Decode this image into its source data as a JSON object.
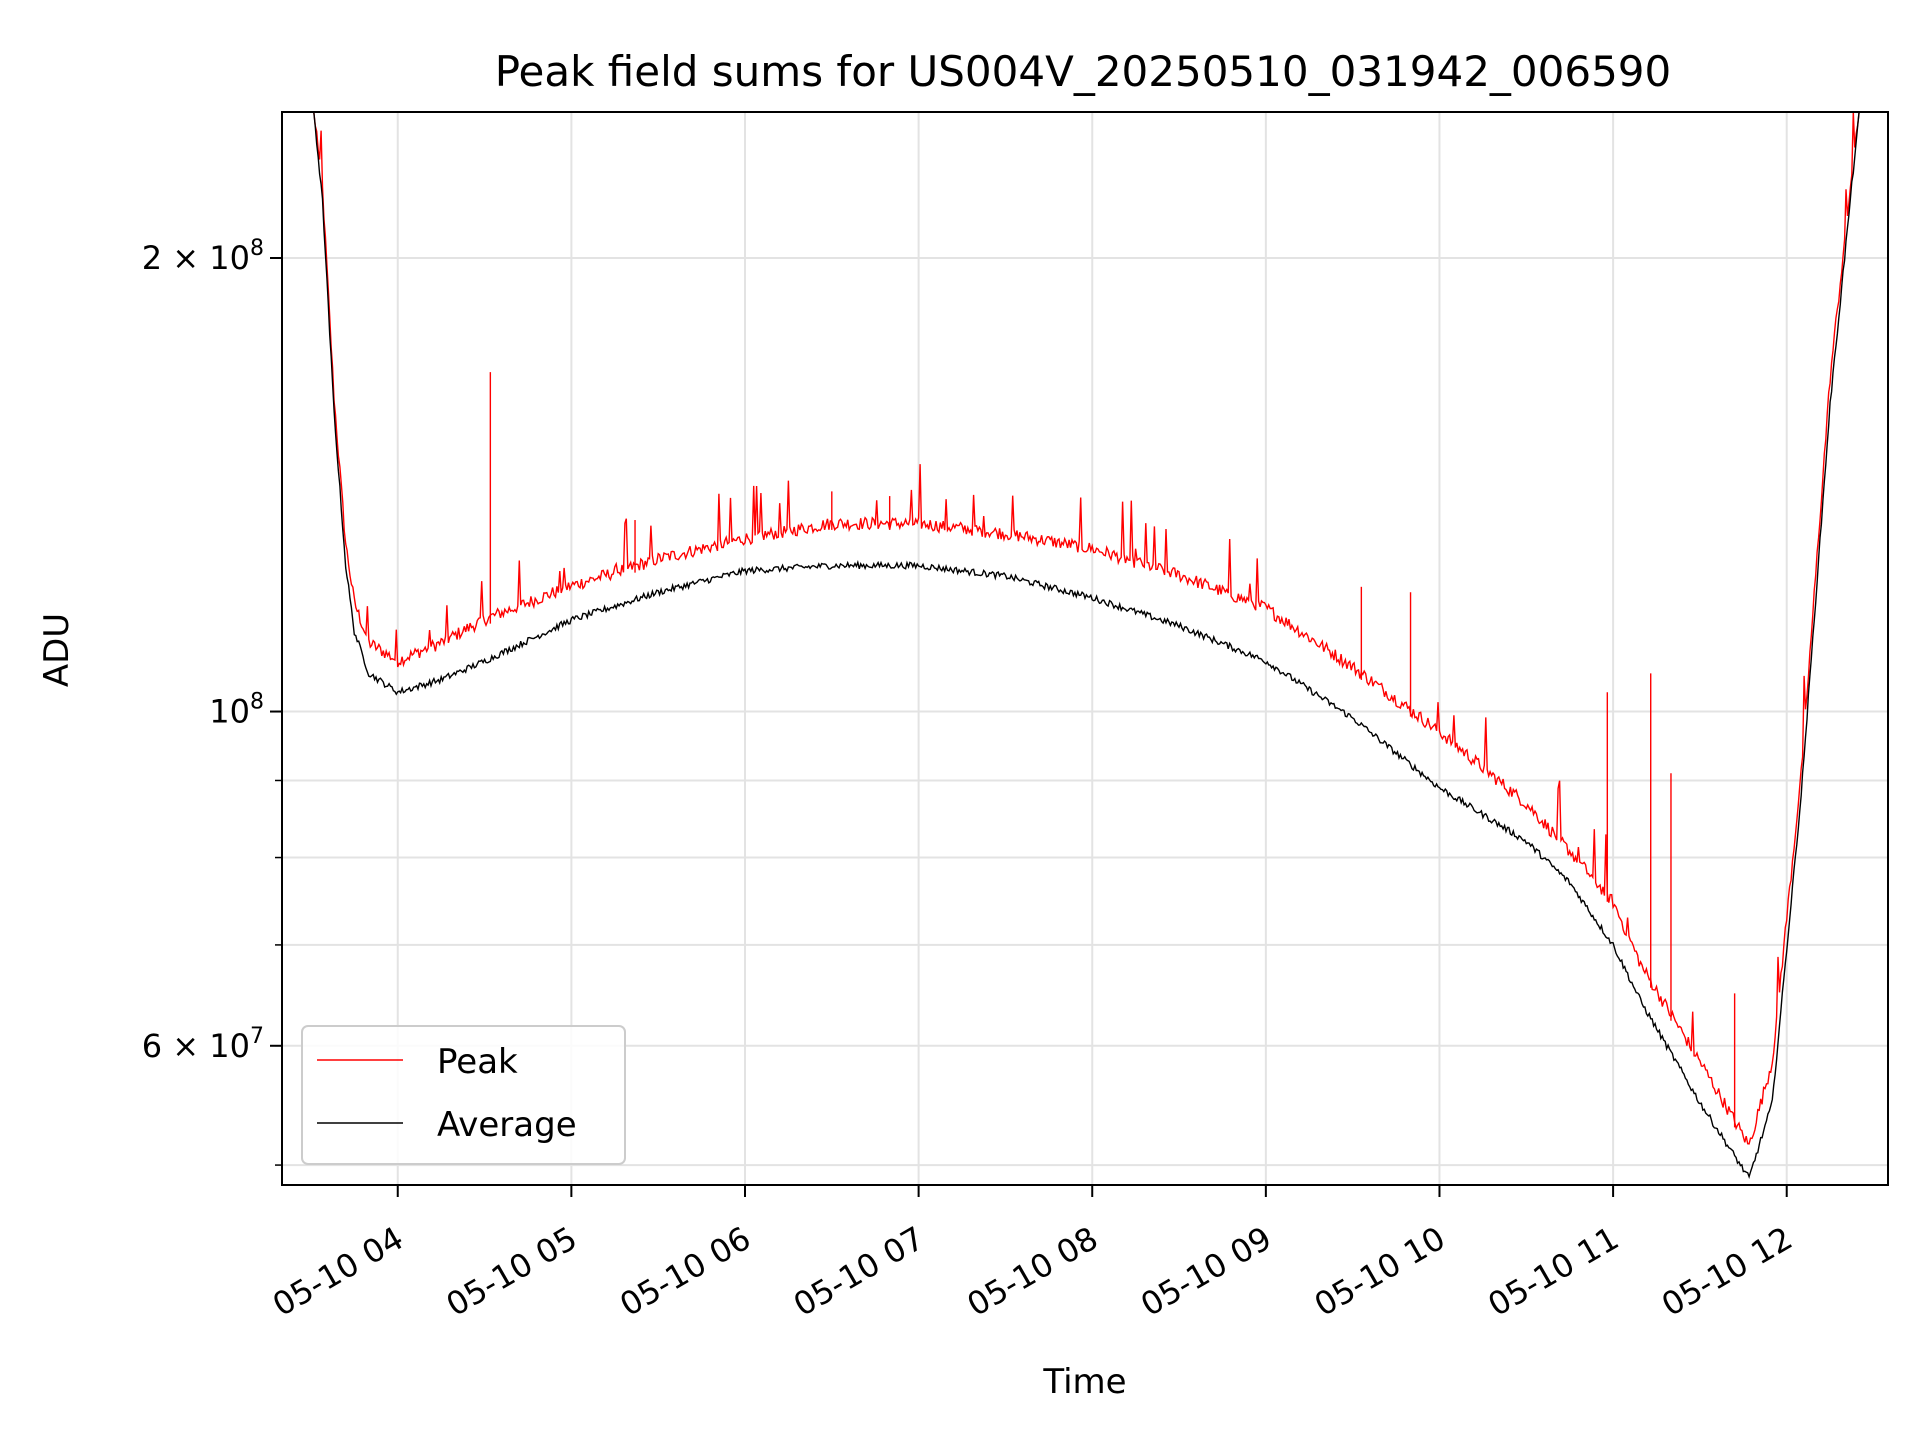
{
  "chart_data": {
    "type": "line",
    "title": "Peak field sums for US004V_20250510_031942_006590",
    "xlabel": "Time",
    "ylabel": "ADU",
    "xlim": [
      "05-10 03:20",
      "05-10 12:35"
    ],
    "ylim": [
      48500000,
      250000000
    ],
    "yscale": "log",
    "grid": true,
    "legend_position": "lower-left",
    "x_tick_labels": [
      "05-10 04",
      "05-10 05",
      "05-10 06",
      "05-10 07",
      "05-10 08",
      "05-10 09",
      "05-10 10",
      "05-10 11",
      "05-10 12"
    ],
    "y_tick_labels": [
      {
        "value": 200000000,
        "base": "2 × 10",
        "exp": "8"
      },
      {
        "value": 100000000,
        "base": "10",
        "exp": "8"
      },
      {
        "value": 60000000,
        "base": "6 × 10",
        "exp": "7"
      }
    ],
    "series": [
      {
        "name": "Peak",
        "color": "#ff0000",
        "x": [
          "05-10 03:20",
          "05-10 03:31",
          "05-10 03:34",
          "05-10 03:38",
          "05-10 03:42",
          "05-10 03:45",
          "05-10 03:50",
          "05-10 04:00",
          "05-10 04:15",
          "05-10 04:30",
          "05-10 05:00",
          "05-10 05:30",
          "05-10 06:00",
          "05-10 06:30",
          "05-10 07:00",
          "05-10 07:30",
          "05-10 08:00",
          "05-10 08:30",
          "05-10 09:00",
          "05-10 09:30",
          "05-10 10:00",
          "05-10 10:30",
          "05-10 10:45",
          "05-10 11:00",
          "05-10 11:10",
          "05-10 11:30",
          "05-10 11:47",
          "05-10 11:55",
          "05-10 12:05",
          "05-10 12:15",
          "05-10 12:25",
          "05-10 12:35"
        ],
        "y": [
          250000000,
          250000000,
          220000000,
          160000000,
          128000000,
          117000000,
          110000000,
          107000000,
          110000000,
          114000000,
          120000000,
          125000000,
          129000000,
          132000000,
          132000000,
          130000000,
          127000000,
          122000000,
          116000000,
          106000000,
          96000000,
          86000000,
          80000000,
          74000000,
          67000000,
          58000000,
          51000000,
          58000000,
          90000000,
          165000000,
          250000000,
          250000000
        ],
        "spikes": [
          {
            "x": "05-10 04:32",
            "y": 168000000
          },
          {
            "x": "05-10 05:22",
            "y": 134000000
          },
          {
            "x": "05-10 06:30",
            "y": 140000000
          },
          {
            "x": "05-10 06:50",
            "y": 139000000
          },
          {
            "x": "05-10 09:33",
            "y": 121000000
          },
          {
            "x": "05-10 09:50",
            "y": 120000000
          },
          {
            "x": "05-10 10:58",
            "y": 103000000
          },
          {
            "x": "05-10 11:13",
            "y": 106000000
          },
          {
            "x": "05-10 11:20",
            "y": 91000000
          },
          {
            "x": "05-10 11:42",
            "y": 65000000
          }
        ]
      },
      {
        "name": "Average",
        "color": "#000000",
        "x": [
          "05-10 03:20",
          "05-10 03:31",
          "05-10 03:34",
          "05-10 03:38",
          "05-10 03:42",
          "05-10 03:45",
          "05-10 03:50",
          "05-10 04:00",
          "05-10 04:15",
          "05-10 04:30",
          "05-10 05:00",
          "05-10 05:30",
          "05-10 06:00",
          "05-10 06:30",
          "05-10 07:00",
          "05-10 07:30",
          "05-10 08:00",
          "05-10 08:30",
          "05-10 09:00",
          "05-10 09:30",
          "05-10 10:00",
          "05-10 10:30",
          "05-10 10:45",
          "05-10 11:00",
          "05-10 11:10",
          "05-10 11:30",
          "05-10 11:47",
          "05-10 11:55",
          "05-10 12:05",
          "05-10 12:15",
          "05-10 12:25",
          "05-10 12:35"
        ],
        "y": [
          250000000,
          250000000,
          218000000,
          158000000,
          125000000,
          113000000,
          106000000,
          103000000,
          105000000,
          108000000,
          115000000,
          120000000,
          124000000,
          125000000,
          125000000,
          123000000,
          119000000,
          114000000,
          108000000,
          99000000,
          89000000,
          82000000,
          77000000,
          70000000,
          64000000,
          55000000,
          49000000,
          55000000,
          88000000,
          160000000,
          250000000,
          250000000
        ]
      }
    ]
  }
}
